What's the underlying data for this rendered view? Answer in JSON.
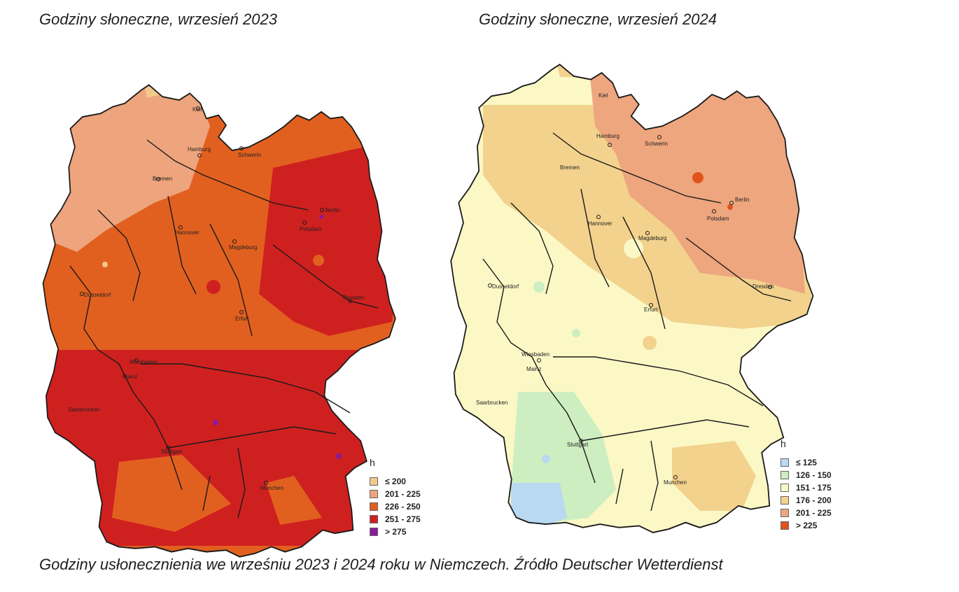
{
  "titles": {
    "left": "Godziny słoneczne, wrzesień 2023",
    "right": "Godziny słoneczne, wrzesień 2024"
  },
  "caption": "Godziny usłonecznienia we wrześniu 2023 i 2024 roku w Niemczech. Źródło Deutscher Wetterdienst",
  "map2023": {
    "cities": [
      "Kiel",
      "Hamburg",
      "Schwerin",
      "Bremen",
      "Berlin",
      "Potsdam",
      "Hannover",
      "Magdeburg",
      "Dusseldorf",
      "Erfurt",
      "Dresden",
      "Wiesbaden",
      "Mainz",
      "Saarbrucken",
      "Stuttgart",
      "Munchen"
    ],
    "legend": {
      "unit": "h",
      "items": [
        {
          "label": "≤ 200",
          "color": "#f3c98a"
        },
        {
          "label": "201 - 225",
          "color": "#eea47c"
        },
        {
          "label": "226 - 250",
          "color": "#e2601f"
        },
        {
          "label": "251 - 275",
          "color": "#cf2020"
        },
        {
          "label": "> 275",
          "color": "#8a1a9a"
        }
      ]
    }
  },
  "map2024": {
    "cities": [
      "Kiel",
      "Hamburg",
      "Schwerin",
      "Bremen",
      "Berlin",
      "Potsdam",
      "Hannover",
      "Magdeburg",
      "Dusseldorf",
      "Erfurt",
      "Dresden",
      "Wiesbaden",
      "Mainz",
      "Saarbrucken",
      "Stuttgart",
      "Munchen"
    ],
    "legend": {
      "unit": "h",
      "items": [
        {
          "label": "≤ 125",
          "color": "#b9d9f3"
        },
        {
          "label": "126 - 150",
          "color": "#cdeec0"
        },
        {
          "label": "151 - 175",
          "color": "#fbf8c6"
        },
        {
          "label": "176 - 200",
          "color": "#f2d28c"
        },
        {
          "label": "201 - 225",
          "color": "#eea67e"
        },
        {
          "label": "> 225",
          "color": "#e0531b"
        }
      ]
    }
  }
}
